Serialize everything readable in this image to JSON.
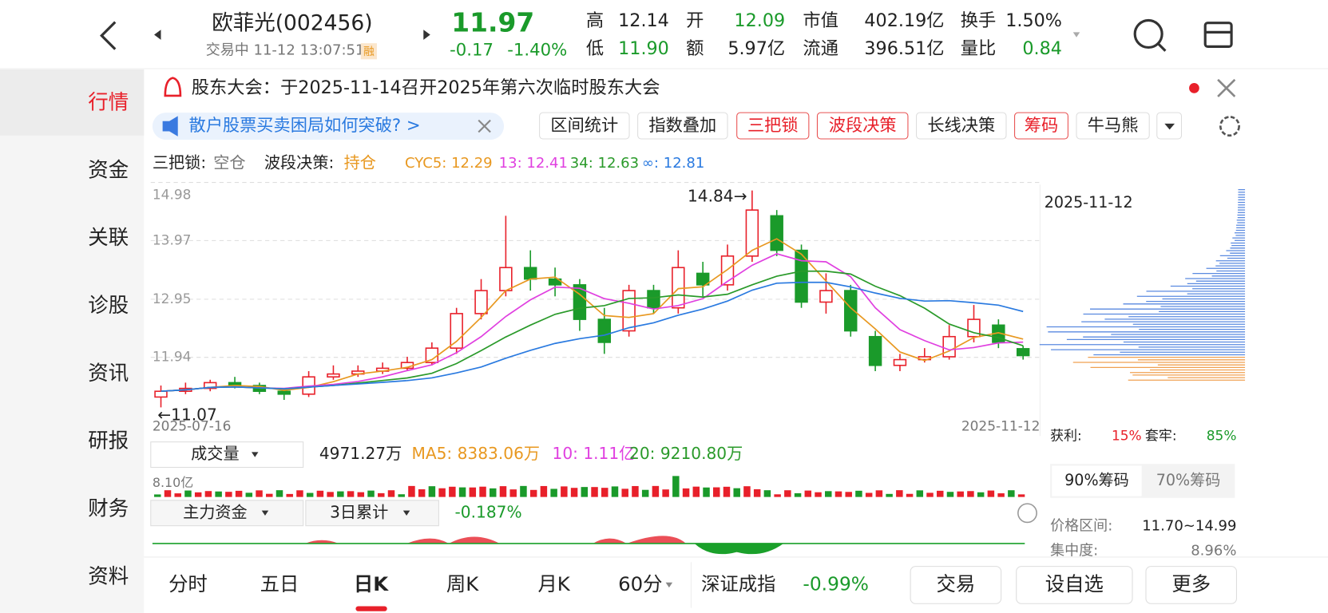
{
  "header": {
    "title": "欧菲光(002456)",
    "status": "交易中 11-12 13:07:51",
    "margin_tag": "融",
    "price": "11.97",
    "change": "-0.17",
    "change_pct": "-1.40%",
    "stats": [
      {
        "label": "高",
        "value": "12.14"
      },
      {
        "label": "低",
        "value": "11.90"
      },
      {
        "label": "开",
        "value": "12.09"
      },
      {
        "label": "额",
        "value": "5.97亿"
      },
      {
        "label": "市值",
        "value": "402.19亿"
      },
      {
        "label": "流通",
        "value": "396.51亿"
      },
      {
        "label": "换手",
        "value": "1.50%"
      },
      {
        "label": "量比",
        "value": "0.84"
      }
    ]
  },
  "sidebar": [
    "行情",
    "资金",
    "关联",
    "诊股",
    "资讯",
    "研报",
    "财务",
    "资料"
  ],
  "notice": "股东大会：于2025-11-14召开2025年第六次临时股东大会",
  "promo": "散户股票买卖困局如何突破? >",
  "tools": [
    "区间统计",
    "指数叠加",
    "三把锁",
    "波段决策",
    "长线决策",
    "筹码",
    "牛马熊"
  ],
  "signals": {
    "lock_label": "三把锁:",
    "lock_value": "空仓",
    "band_label": "波段决策:",
    "band_value": "持仓",
    "cyc": [
      "CYC5: 12.29",
      "13: 12.41",
      "34: 12.63",
      "∞: 12.81"
    ]
  },
  "kline": {
    "ylim": [
      10.94,
      15.06
    ],
    "yticks": [
      11.94,
      12.95,
      13.97,
      14.98
    ],
    "candles": [
      [
        11.25,
        11.35,
        11.45,
        11.07
      ],
      [
        11.35,
        11.4,
        11.5,
        11.3
      ],
      [
        11.4,
        11.5,
        11.55,
        11.35
      ],
      [
        11.5,
        11.45,
        11.6,
        11.4
      ],
      [
        11.45,
        11.35,
        11.5,
        11.3
      ],
      [
        11.35,
        11.3,
        11.4,
        11.2
      ],
      [
        11.3,
        11.6,
        11.7,
        11.25
      ],
      [
        11.6,
        11.65,
        11.8,
        11.55
      ],
      [
        11.65,
        11.7,
        11.8,
        11.6
      ],
      [
        11.7,
        11.75,
        11.85,
        11.65
      ],
      [
        11.75,
        11.85,
        11.95,
        11.7
      ],
      [
        11.85,
        12.1,
        12.2,
        11.8
      ],
      [
        12.1,
        12.7,
        12.8,
        12.0
      ],
      [
        12.7,
        13.1,
        13.3,
        12.6
      ],
      [
        13.1,
        13.5,
        14.4,
        13.0
      ],
      [
        13.5,
        13.3,
        13.8,
        13.1
      ],
      [
        13.3,
        13.2,
        13.5,
        13.0
      ],
      [
        13.2,
        12.6,
        13.3,
        12.4
      ],
      [
        12.6,
        12.2,
        12.8,
        12.0
      ],
      [
        12.4,
        13.1,
        13.2,
        12.3
      ],
      [
        13.1,
        12.8,
        13.2,
        12.7
      ],
      [
        12.8,
        13.5,
        13.8,
        12.7
      ],
      [
        13.4,
        13.2,
        13.6,
        13.0
      ],
      [
        13.2,
        13.7,
        13.9,
        13.1
      ],
      [
        13.7,
        14.5,
        14.84,
        13.6
      ],
      [
        14.4,
        13.8,
        14.5,
        13.7
      ],
      [
        13.8,
        12.9,
        13.9,
        12.8
      ],
      [
        12.9,
        13.1,
        13.4,
        12.7
      ],
      [
        13.1,
        12.4,
        13.2,
        12.3
      ],
      [
        12.3,
        11.8,
        12.4,
        11.7
      ],
      [
        11.8,
        11.9,
        12.0,
        11.7
      ],
      [
        11.9,
        11.95,
        12.1,
        11.85
      ],
      [
        11.95,
        12.3,
        12.5,
        11.9
      ],
      [
        12.3,
        12.6,
        12.85,
        12.2
      ],
      [
        12.5,
        12.2,
        12.6,
        12.1
      ],
      [
        12.09,
        11.97,
        12.14,
        11.9
      ]
    ],
    "high_label": "14.84→",
    "low_label": "←11.07",
    "start_date": "2025-07-16",
    "end_date": "2025-11-12"
  },
  "chips": {
    "date": "2025-11-12",
    "profit_label": "获利:",
    "profit": "15%",
    "trapped_label": "套牢:",
    "trapped": "85%",
    "tabs": [
      "90%筹码",
      "70%筹码"
    ],
    "range_label": "价格区间:",
    "range": "11.70~14.99",
    "concentration_label": "集中度:",
    "concentration": "8.96%"
  },
  "volume": {
    "selector": "成交量",
    "value": "4971.27万",
    "ma": [
      "MA5: 8383.06万",
      "10: 1.11亿",
      "20: 9210.80万"
    ],
    "max": "8.10亿"
  },
  "fund": {
    "selector": "主力资金",
    "period": "3日累计",
    "value": "-0.187%"
  },
  "tabs": [
    "分时",
    "五日",
    "日K",
    "周K",
    "月K",
    "60分"
  ],
  "index": {
    "name": "深证成指",
    "change": "-0.99%"
  },
  "buttons": [
    "交易",
    "设自选",
    "更多"
  ]
}
